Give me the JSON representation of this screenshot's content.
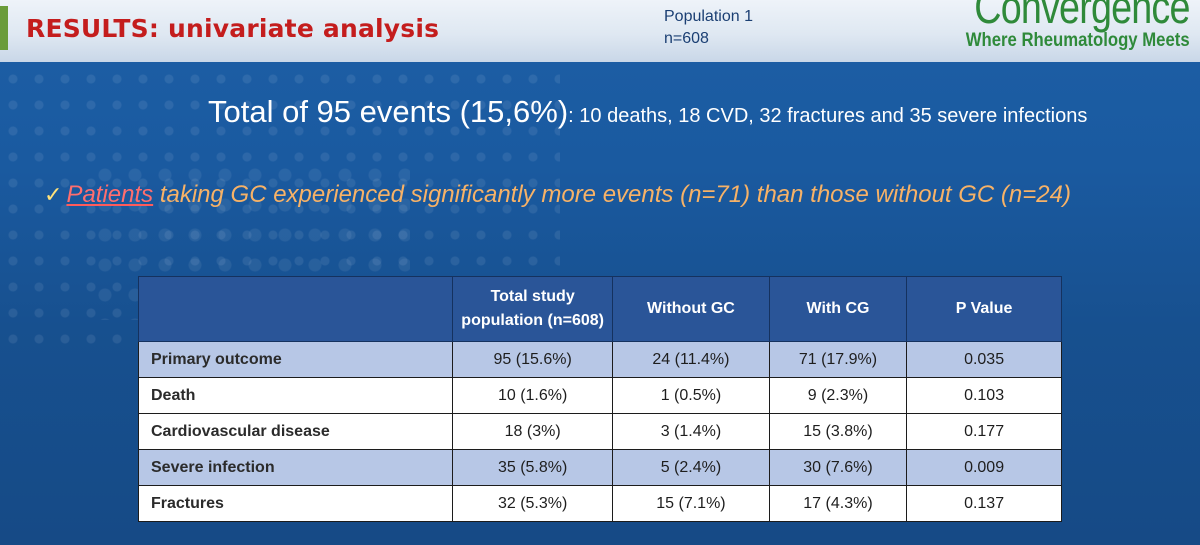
{
  "header": {
    "title": "RESULTS: univariate analysis",
    "population_label": "Population 1",
    "population_n": "n=608"
  },
  "logo": {
    "wordmark": "Convergence",
    "tagline": "Where Rheumatology Meets"
  },
  "headline": {
    "main": "Total of 95 events (15,6%)",
    "detail": ": 10 deaths, 18 CVD, 32 fractures and 35 severe infections"
  },
  "statement": {
    "check": "✓",
    "highlight": "Patients",
    "rest": " taking GC experienced significantly more events (n=71) than those without GC (n=24)"
  },
  "table": {
    "headers": [
      "",
      "Total study population (n=608)",
      "Without GC",
      "With CG",
      "P Value"
    ],
    "rows": [
      {
        "label": "Primary outcome",
        "total": "95 (15.6%)",
        "without": "24 (11.4%)",
        "with": "71 (17.9%)",
        "p": "0.035"
      },
      {
        "label": "Death",
        "total": "10 (1.6%)",
        "without": "1 (0.5%)",
        "with": "9 (2.3%)",
        "p": "0.103"
      },
      {
        "label": "Cardiovascular disease",
        "total": "18 (3%)",
        "without": "3 (1.4%)",
        "with": "15 (3.8%)",
        "p": "0.177"
      },
      {
        "label": "Severe infection",
        "total": "35 (5.8%)",
        "without": "5 (2.4%)",
        "with": "30 (7.6%)",
        "p": "0.009"
      },
      {
        "label": "Fractures",
        "total": "32 (5.3%)",
        "without": "15 (7.1%)",
        "with": "17 (4.3%)",
        "p": "0.137"
      }
    ]
  },
  "colors": {
    "background": "#1a5aa0",
    "title": "#c41d1d",
    "table_header": "#2a5598",
    "row_shade": "#b7c7e6",
    "statement": "#f7b267"
  }
}
